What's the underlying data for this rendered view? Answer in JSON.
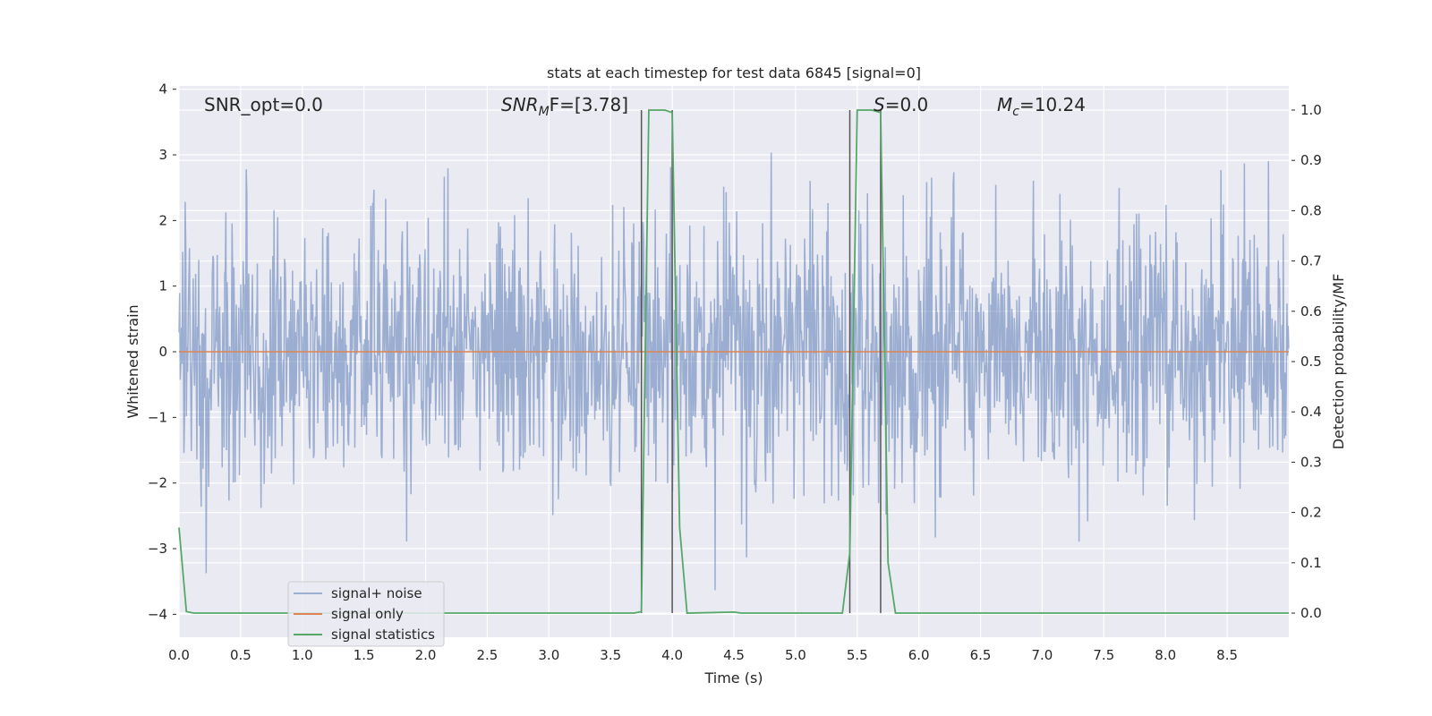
{
  "chart_data": {
    "type": "line",
    "title": "stats at each timestep for test data 6845 [signal=0]",
    "xlabel": "Time (s)",
    "ylabel": "Whitened strain",
    "y2label": "Detection probability/MF",
    "xlim": [
      0,
      9.0
    ],
    "ylim": [
      -4.35,
      4.05
    ],
    "y2lim": [
      -0.048,
      1.048
    ],
    "xticks": [
      "0.0",
      "0.5",
      "1.0",
      "1.5",
      "2.0",
      "2.5",
      "3.0",
      "3.5",
      "4.0",
      "4.5",
      "5.0",
      "5.5",
      "6.0",
      "6.5",
      "7.0",
      "7.5",
      "8.0",
      "8.5"
    ],
    "yticks": [
      "−4",
      "−3",
      "−2",
      "−1",
      "0",
      "1",
      "2",
      "3",
      "4"
    ],
    "y2ticks": [
      "0.0",
      "0.1",
      "0.2",
      "0.3",
      "0.4",
      "0.5",
      "0.6",
      "0.7",
      "0.8",
      "0.9",
      "1.0"
    ],
    "grid": true,
    "legend_position": "lower-left",
    "annotations": {
      "snr_opt": "SNR_opt=0.0",
      "snr_mf_main": "SNR",
      "snr_mf_sub": "M",
      "snr_mf_rest": "F=[3.78]",
      "s_main": "S",
      "s_rest": "=0.0",
      "mc_main": "M",
      "mc_sub": "c",
      "mc_rest": "=10.24"
    },
    "series": [
      {
        "name": "signal+ noise",
        "color": "#4c72b0",
        "noise": {
          "n_points": 1800,
          "x_start": 0,
          "x_end": 9.0,
          "mean": 0,
          "std": 1.0,
          "seed": 6845
        }
      },
      {
        "name": "signal only",
        "color": "#dd8452",
        "x": [
          0,
          9.0
        ],
        "y": [
          0,
          0
        ]
      },
      {
        "name": "signal statistics",
        "color": "#55a868",
        "axis": "right",
        "x": [
          0,
          0.06,
          0.12,
          3.69,
          3.75,
          3.81,
          3.94,
          4.0,
          4.06,
          4.12,
          4.5,
          4.56,
          5.38,
          5.44,
          5.5,
          5.62,
          5.69,
          5.75,
          5.81,
          9.0
        ],
        "y": [
          0.17,
          0.003,
          0.0,
          0.0,
          0.003,
          1.0,
          1.0,
          0.995,
          0.17,
          0.0,
          0.002,
          0.0,
          0.0,
          0.12,
          1.0,
          1.0,
          0.995,
          0.1,
          0.0,
          0.0
        ]
      }
    ],
    "vlines": {
      "color": "#555555",
      "x": [
        3.75,
        4.0,
        5.44,
        5.69
      ],
      "ymin": 0.0,
      "ymax": 1.0
    }
  }
}
